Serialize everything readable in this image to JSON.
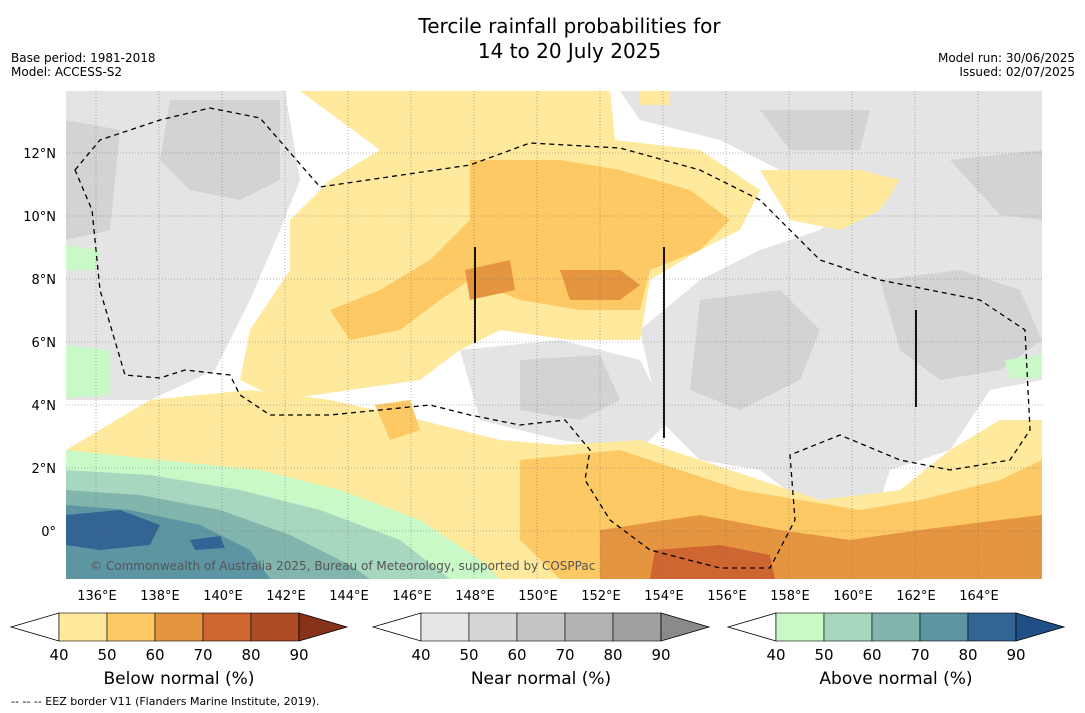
{
  "title_line1": "Tercile rainfall probabilities for",
  "title_line2": "14 to 20 July 2025",
  "base_period": "Base period: 1981-2018",
  "model": "Model: ACCESS-S2",
  "model_run": "Model run: 30/06/2025",
  "issued": "Issued: 02/07/2025",
  "copyright": "© Commonwealth of Australia 2025, Bureau of Meteorology, supported by COSPPac",
  "footnote": "--  --  -- EEZ border V11 (Flanders Marine Institute, 2019).",
  "map": {
    "lon_range": [
      135,
      166
    ],
    "lat_range": [
      -1.5,
      14
    ],
    "x_ticks": [
      "136°E",
      "138°E",
      "140°E",
      "142°E",
      "144°E",
      "146°E",
      "148°E",
      "150°E",
      "152°E",
      "154°E",
      "156°E",
      "158°E",
      "160°E",
      "162°E",
      "164°E"
    ],
    "y_ticks": [
      "12°N",
      "10°N",
      "8°N",
      "6°N",
      "4°N",
      "2°N",
      "0°"
    ],
    "grid": true
  },
  "colorbars": [
    {
      "title": "Below normal (%)",
      "ticks": [
        "40",
        "50",
        "60",
        "70",
        "80",
        "90"
      ],
      "colors": [
        "#ffffff",
        "#fee99c",
        "#fdc964",
        "#e59440",
        "#cf6631",
        "#ab4c26",
        "#86331a"
      ]
    },
    {
      "title": "Near normal (%)",
      "ticks": [
        "40",
        "50",
        "60",
        "70",
        "80",
        "90"
      ],
      "colors": [
        "#ffffff",
        "#e6e6e6",
        "#d6d6d6",
        "#c5c5c5",
        "#b3b3b3",
        "#a0a0a0",
        "#8a8a8a"
      ]
    },
    {
      "title": "Above normal (%)",
      "ticks": [
        "40",
        "50",
        "60",
        "70",
        "80",
        "90"
      ],
      "colors": [
        "#ffffff",
        "#c9f9c7",
        "#a7d8bf",
        "#82b6ad",
        "#5e95a2",
        "#326594",
        "#1f4f85"
      ]
    }
  ]
}
